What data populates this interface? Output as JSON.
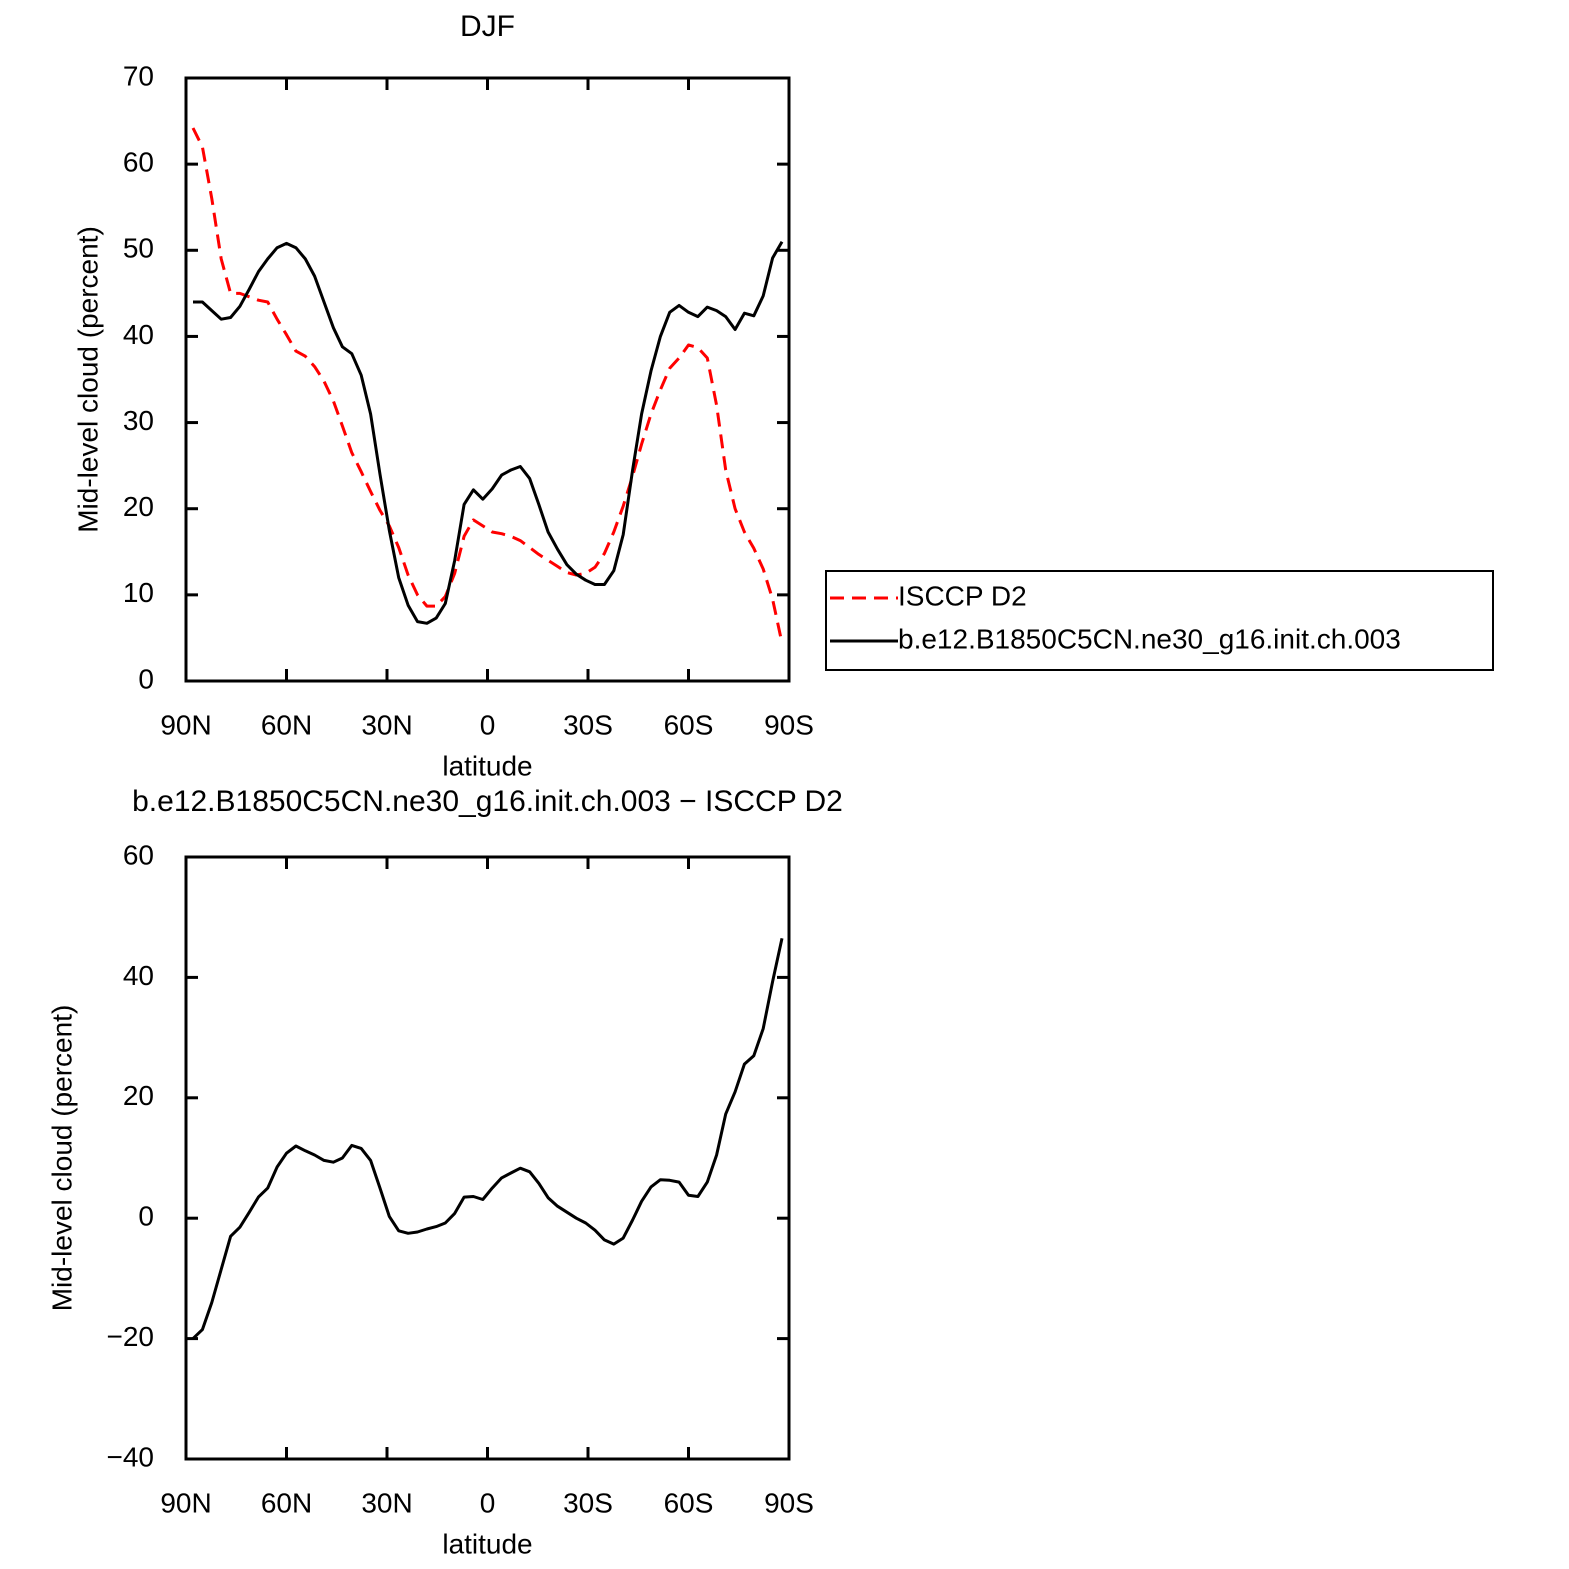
{
  "chart_data": [
    {
      "type": "line",
      "title": "DJF",
      "xlabel": "latitude",
      "ylabel": "Mid-level cloud (percent)",
      "x": [
        87.9,
        85.1,
        82.3,
        79.5,
        76.7,
        73.9,
        71.1,
        68.4,
        65.6,
        62.8,
        60.0,
        57.2,
        54.4,
        51.6,
        48.8,
        46.0,
        43.3,
        40.5,
        37.7,
        34.9,
        32.1,
        29.3,
        26.5,
        23.7,
        20.9,
        18.1,
        15.3,
        12.6,
        9.8,
        7.0,
        4.2,
        1.4,
        -1.4,
        -4.2,
        -7.0,
        -9.8,
        -12.6,
        -15.3,
        -18.1,
        -20.9,
        -23.7,
        -26.5,
        -29.3,
        -32.1,
        -34.9,
        -37.7,
        -40.5,
        -43.3,
        -46.0,
        -48.8,
        -51.6,
        -54.4,
        -57.2,
        -60.0,
        -62.8,
        -65.6,
        -68.4,
        -71.1,
        -73.9,
        -76.7,
        -79.5,
        -82.3,
        -85.1,
        -87.9
      ],
      "xlim": [
        90,
        -90
      ],
      "xticks": [
        {
          "value": 90,
          "label": "90N"
        },
        {
          "value": 60,
          "label": "60N"
        },
        {
          "value": 30,
          "label": "30N"
        },
        0,
        {
          "value": -30,
          "label": "30S"
        },
        {
          "value": -60,
          "label": "60S"
        },
        {
          "value": -90,
          "label": "90S"
        }
      ],
      "ylim": [
        0,
        70
      ],
      "yticks": [
        0,
        10,
        20,
        30,
        40,
        50,
        60,
        70
      ],
      "legend": "outside right",
      "series": [
        {
          "name": "ISCCP D2",
          "color": "#ff0000",
          "dashed": true,
          "values": [
            64.2,
            62,
            56,
            49,
            45,
            45,
            44.6,
            44.2,
            44,
            42,
            40.2,
            38.3,
            37.7,
            36.5,
            34.8,
            32.5,
            29.6,
            26.5,
            24.3,
            22,
            19.8,
            18,
            15.5,
            12.3,
            10,
            8.7,
            8.7,
            9.8,
            12.5,
            16.8,
            18.7,
            18,
            17.3,
            17.1,
            16.8,
            16.3,
            15.5,
            14.7,
            14,
            13.3,
            12.6,
            12.3,
            12.5,
            13.2,
            14.8,
            17.3,
            20.3,
            23.8,
            27.5,
            31,
            33.8,
            36.3,
            37.5,
            39,
            38.7,
            37.5,
            32,
            24.5,
            20,
            17.3,
            15.4,
            13,
            9.5,
            4.4
          ]
        },
        {
          "name": "b.e12.B1850C5CN.ne30_g16.init.ch.003",
          "color": "#000000",
          "dashed": false,
          "values": [
            44,
            44,
            43,
            42,
            42.2,
            43.5,
            45.5,
            47.5,
            49,
            50.3,
            50.8,
            50.3,
            49,
            47,
            44,
            41,
            38.8,
            38,
            35.5,
            31,
            24,
            17.5,
            12,
            8.8,
            6.9,
            6.7,
            7.3,
            9,
            14,
            20.5,
            22.2,
            21.1,
            22.3,
            23.9,
            24.5,
            24.9,
            23.5,
            20.5,
            17.3,
            15.3,
            13.5,
            12.4,
            11.7,
            11.2,
            11.2,
            12.8,
            17,
            24.5,
            31,
            36,
            40,
            42.8,
            43.6,
            42.8,
            42.3,
            43.4,
            43,
            42.3,
            40.8,
            42.7,
            42.4,
            44.7,
            49.1,
            51
          ]
        }
      ]
    },
    {
      "type": "line",
      "title": "b.e12.B1850C5CN.ne30_g16.init.ch.003 − ISCCP D2",
      "xlabel": "latitude",
      "ylabel": "Mid-level cloud (percent)",
      "x": [
        87.9,
        85.1,
        82.3,
        79.5,
        76.7,
        73.9,
        71.1,
        68.4,
        65.6,
        62.8,
        60.0,
        57.2,
        54.4,
        51.6,
        48.8,
        46.0,
        43.3,
        40.5,
        37.7,
        34.9,
        32.1,
        29.3,
        26.5,
        23.7,
        20.9,
        18.1,
        15.3,
        12.6,
        9.8,
        7.0,
        4.2,
        1.4,
        -1.4,
        -4.2,
        -7.0,
        -9.8,
        -12.6,
        -15.3,
        -18.1,
        -20.9,
        -23.7,
        -26.5,
        -29.3,
        -32.1,
        -34.9,
        -37.7,
        -40.5,
        -43.3,
        -46.0,
        -48.8,
        -51.6,
        -54.4,
        -57.2,
        -60.0,
        -62.8,
        -65.6,
        -68.4,
        -71.1,
        -73.9,
        -76.7,
        -79.5,
        -82.3,
        -85.1,
        -87.9
      ],
      "xlim": [
        90,
        -90
      ],
      "xticks": [
        {
          "value": 90,
          "label": "90N"
        },
        {
          "value": 60,
          "label": "60N"
        },
        {
          "value": 30,
          "label": "30N"
        },
        0,
        {
          "value": -30,
          "label": "30S"
        },
        {
          "value": -60,
          "label": "60S"
        },
        {
          "value": -90,
          "label": "90S"
        }
      ],
      "ylim": [
        -40,
        60
      ],
      "yticks": [
        {
          "value": -40,
          "label": "−40"
        },
        {
          "value": -20,
          "label": "−20"
        },
        0,
        20,
        40,
        60
      ],
      "color": "#000000",
      "values": [
        -20,
        -18.5,
        -14,
        -8.5,
        -3,
        -1.5,
        1,
        3.5,
        5,
        8.5,
        10.8,
        12,
        11.2,
        10.5,
        9.6,
        9.3,
        10,
        12.1,
        11.6,
        9.6,
        5,
        0.3,
        -2.1,
        -2.5,
        -2.3,
        -1.8,
        -1.4,
        -0.8,
        0.8,
        3.5,
        3.6,
        3.1,
        5,
        6.7,
        7.5,
        8.3,
        7.7,
        5.8,
        3.4,
        2,
        1,
        0,
        -0.8,
        -2,
        -3.6,
        -4.3,
        -3.3,
        -0.3,
        2.8,
        5.2,
        6.4,
        6.3,
        6,
        3.8,
        3.6,
        6,
        10.5,
        17.3,
        21,
        25.6,
        27,
        31.5,
        39.3,
        46.5
      ]
    }
  ]
}
